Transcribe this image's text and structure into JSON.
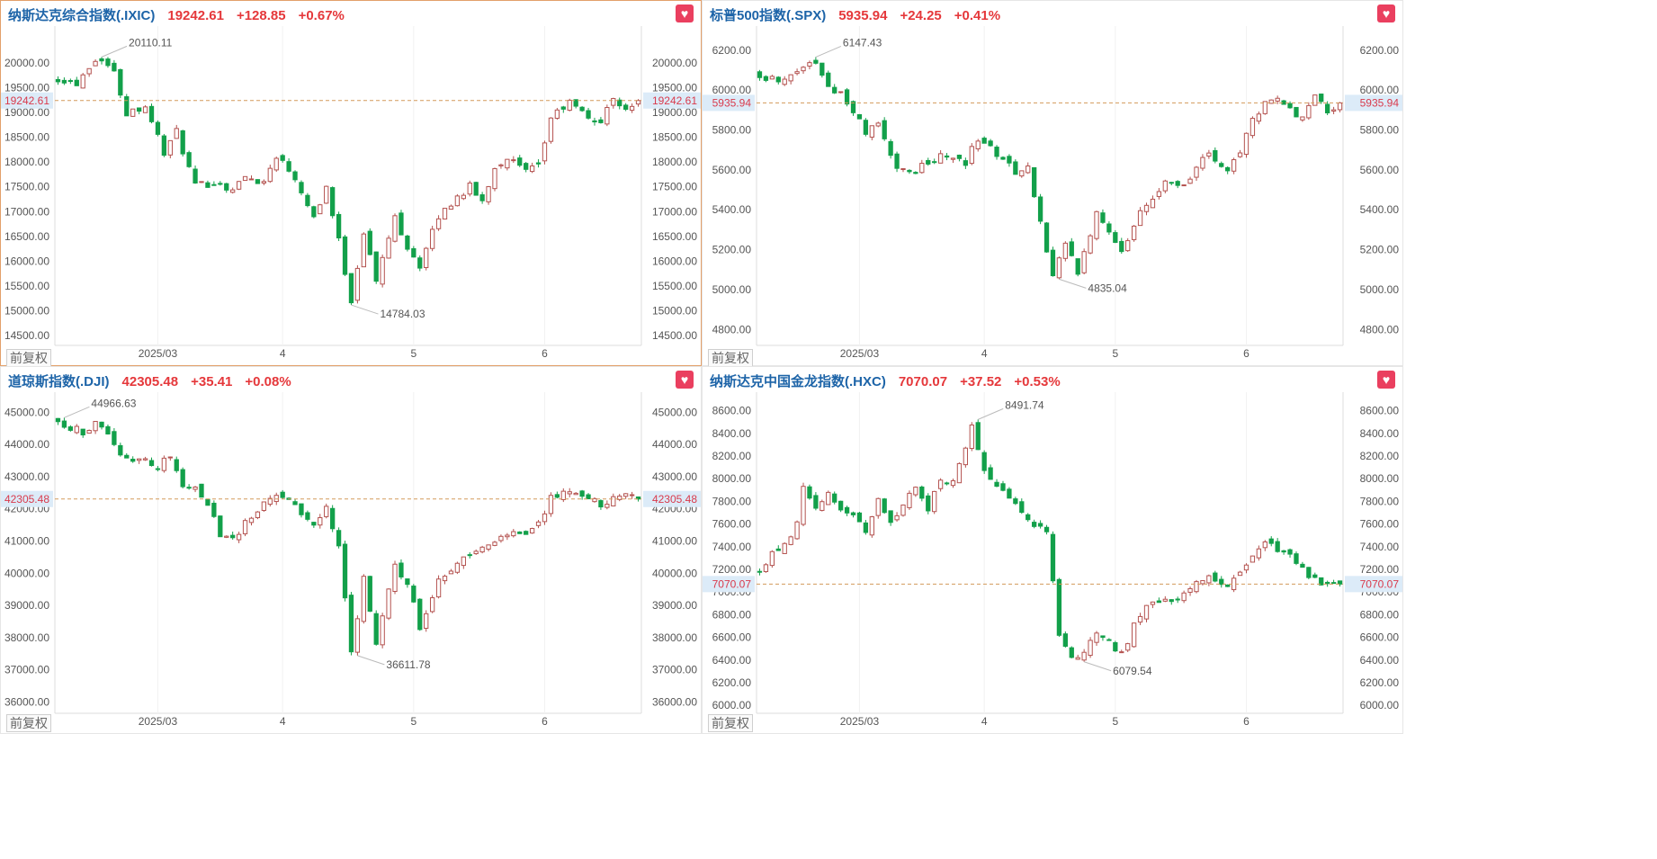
{
  "chart_data": [
    {
      "type": "candlestick",
      "name": "纳斯达克综合指数",
      "code": "(.IXIC)",
      "price": "19242.61",
      "change": "+128.85",
      "pct": "+0.67%",
      "adjust_label": "前复权",
      "y_ticks": [
        "20000.00",
        "19500.00",
        "19000.00",
        "18500.00",
        "18000.00",
        "17500.00",
        "17000.00",
        "16500.00",
        "16000.00",
        "15500.00",
        "15000.00",
        "14500.00"
      ],
      "ylim": [
        14300,
        20600
      ],
      "x_ticks": [
        "2025/03",
        "4",
        "5",
        "6"
      ],
      "current_label": "19242.61",
      "current_value": 19242.61,
      "high_label": "20110.11",
      "low_label": "14784.03",
      "anchors": [
        [
          0,
          19700
        ],
        [
          3,
          19600
        ],
        [
          5,
          19950
        ],
        [
          6,
          20050
        ],
        [
          7,
          20110
        ],
        [
          9,
          19800
        ],
        [
          11,
          19000
        ],
        [
          14,
          19150
        ],
        [
          17,
          18200
        ],
        [
          19,
          18600
        ],
        [
          22,
          17500
        ],
        [
          25,
          17600
        ],
        [
          28,
          17450
        ],
        [
          30,
          17700
        ],
        [
          33,
          17600
        ],
        [
          35,
          18150
        ],
        [
          38,
          17700
        ],
        [
          41,
          16900
        ],
        [
          43,
          17500
        ],
        [
          45,
          16400
        ],
        [
          47,
          15200
        ],
        [
          49,
          16600
        ],
        [
          51,
          15600
        ],
        [
          54,
          16900
        ],
        [
          56,
          16300
        ],
        [
          58,
          15900
        ],
        [
          61,
          16900
        ],
        [
          64,
          17300
        ],
        [
          66,
          17500
        ],
        [
          68,
          17200
        ],
        [
          70,
          17900
        ],
        [
          72,
          18100
        ],
        [
          75,
          17800
        ],
        [
          77,
          17900
        ],
        [
          79,
          18900
        ],
        [
          82,
          19200
        ],
        [
          85,
          18900
        ],
        [
          87,
          18800
        ],
        [
          89,
          19300
        ],
        [
          91,
          19100
        ],
        [
          93,
          19242.61
        ]
      ],
      "ohlc": []
    },
    {
      "type": "candlestick",
      "name": "标普500指数",
      "code": "(.SPX)",
      "price": "5935.94",
      "change": "+24.25",
      "pct": "+0.41%",
      "adjust_label": "前复权",
      "y_ticks": [
        "6200.00",
        "6000.00",
        "5800.00",
        "5600.00",
        "5400.00",
        "5200.00",
        "5000.00",
        "4800.00"
      ],
      "ylim": [
        4720,
        6285
      ],
      "x_ticks": [
        "2025/03",
        "4",
        "5",
        "6"
      ],
      "current_label": "5935.94",
      "current_value": 5935.94,
      "high_label": "6147.43",
      "low_label": "4835.04",
      "anchors": [
        [
          0,
          6080
        ],
        [
          3,
          6040
        ],
        [
          5,
          6090
        ],
        [
          7,
          6120
        ],
        [
          9,
          6130
        ],
        [
          11,
          6020
        ],
        [
          14,
          5950
        ],
        [
          17,
          5780
        ],
        [
          19,
          5830
        ],
        [
          22,
          5600
        ],
        [
          25,
          5600
        ],
        [
          28,
          5650
        ],
        [
          30,
          5680
        ],
        [
          33,
          5640
        ],
        [
          35,
          5760
        ],
        [
          38,
          5680
        ],
        [
          41,
          5590
        ],
        [
          43,
          5620
        ],
        [
          45,
          5330
        ],
        [
          47,
          5050
        ],
        [
          49,
          5250
        ],
        [
          51,
          5070
        ],
        [
          54,
          5390
        ],
        [
          56,
          5280
        ],
        [
          58,
          5180
        ],
        [
          61,
          5380
        ],
        [
          64,
          5500
        ],
        [
          66,
          5550
        ],
        [
          68,
          5510
        ],
        [
          70,
          5620
        ],
        [
          72,
          5680
        ],
        [
          75,
          5600
        ],
        [
          77,
          5670
        ],
        [
          79,
          5870
        ],
        [
          82,
          5950
        ],
        [
          85,
          5920
        ],
        [
          87,
          5850
        ],
        [
          89,
          5960
        ],
        [
          91,
          5900
        ],
        [
          93,
          5935.94
        ]
      ],
      "ohlc": []
    },
    {
      "type": "candlestick",
      "name": "道琼斯指数",
      "code": "(.DJI)",
      "price": "42305.48",
      "change": "+35.41",
      "pct": "+0.08%",
      "adjust_label": "前复权",
      "y_ticks": [
        "45000.00",
        "44000.00",
        "43000.00",
        "42000.00",
        "41000.00",
        "40000.00",
        "39000.00",
        "38000.00",
        "37000.00",
        "36000.00"
      ],
      "ylim": [
        35650,
        45400
      ],
      "x_ticks": [
        "2025/03",
        "4",
        "5",
        "6"
      ],
      "current_label": "42305.48",
      "current_value": 42305.48,
      "high_label": "44966.63",
      "low_label": "36611.78",
      "anchors": [
        [
          0,
          44800
        ],
        [
          2,
          44500
        ],
        [
          4,
          44400
        ],
        [
          6,
          44600
        ],
        [
          8,
          44400
        ],
        [
          10,
          43600
        ],
        [
          12,
          43400
        ],
        [
          14,
          43500
        ],
        [
          16,
          43300
        ],
        [
          18,
          43700
        ],
        [
          20,
          42800
        ],
        [
          22,
          42700
        ],
        [
          24,
          42100
        ],
        [
          26,
          41200
        ],
        [
          28,
          41000
        ],
        [
          30,
          41600
        ],
        [
          33,
          42200
        ],
        [
          35,
          42500
        ],
        [
          38,
          42200
        ],
        [
          41,
          41400
        ],
        [
          43,
          42100
        ],
        [
          45,
          40800
        ],
        [
          47,
          37500
        ],
        [
          49,
          39800
        ],
        [
          51,
          37700
        ],
        [
          54,
          40300
        ],
        [
          56,
          39700
        ],
        [
          58,
          38300
        ],
        [
          61,
          39800
        ],
        [
          64,
          40200
        ],
        [
          66,
          40600
        ],
        [
          68,
          40900
        ],
        [
          70,
          41000
        ],
        [
          72,
          41300
        ],
        [
          75,
          41100
        ],
        [
          77,
          41500
        ],
        [
          79,
          42300
        ],
        [
          82,
          42600
        ],
        [
          85,
          42400
        ],
        [
          87,
          42100
        ],
        [
          89,
          42400
        ],
        [
          91,
          42350
        ],
        [
          93,
          42305.48
        ]
      ],
      "ohlc": []
    },
    {
      "type": "candlestick",
      "name": "纳斯达克中国金龙指数",
      "code": "(.HXC)",
      "price": "7070.07",
      "change": "+37.52",
      "pct": "+0.53%",
      "adjust_label": "",
      "y_ticks": [
        "8600.00",
        "8400.00",
        "8200.00",
        "8000.00",
        "7800.00",
        "7600.00",
        "7400.00",
        "7200.00",
        "7000.00",
        "6800.00",
        "6600.00",
        "6400.00",
        "6200.00",
        "6000.00"
      ],
      "ylim": [
        5930,
        8700
      ],
      "x_ticks": [
        "2025/03",
        "4",
        "5",
        "6"
      ],
      "current_label": "7070.07",
      "current_value": 7070.07,
      "high_label": "8491.74",
      "low_label": "6079.54",
      "anchors": [
        [
          0,
          7200
        ],
        [
          2,
          7350
        ],
        [
          4,
          7400
        ],
        [
          6,
          7600
        ],
        [
          7,
          7900
        ],
        [
          9,
          7750
        ],
        [
          11,
          7900
        ],
        [
          13,
          7700
        ],
        [
          15,
          7700
        ],
        [
          17,
          7550
        ],
        [
          19,
          7800
        ],
        [
          21,
          7600
        ],
        [
          23,
          7800
        ],
        [
          25,
          7900
        ],
        [
          27,
          7750
        ],
        [
          29,
          8000
        ],
        [
          31,
          7950
        ],
        [
          33,
          8300
        ],
        [
          34,
          8450
        ],
        [
          36,
          8100
        ],
        [
          38,
          7950
        ],
        [
          40,
          7850
        ],
        [
          42,
          7700
        ],
        [
          44,
          7600
        ],
        [
          46,
          7550
        ],
        [
          47,
          7100
        ],
        [
          48,
          6600
        ],
        [
          50,
          6400
        ],
        [
          52,
          6500
        ],
        [
          54,
          6650
        ],
        [
          56,
          6550
        ],
        [
          58,
          6450
        ],
        [
          60,
          6700
        ],
        [
          62,
          6900
        ],
        [
          64,
          6900
        ],
        [
          66,
          6920
        ],
        [
          68,
          7000
        ],
        [
          70,
          7100
        ],
        [
          72,
          7150
        ],
        [
          75,
          7050
        ],
        [
          77,
          7150
        ],
        [
          79,
          7300
        ],
        [
          81,
          7450
        ],
        [
          83,
          7350
        ],
        [
          85,
          7300
        ],
        [
          87,
          7200
        ],
        [
          89,
          7100
        ],
        [
          91,
          7050
        ],
        [
          93,
          7070.07
        ]
      ],
      "ohlc": []
    }
  ]
}
